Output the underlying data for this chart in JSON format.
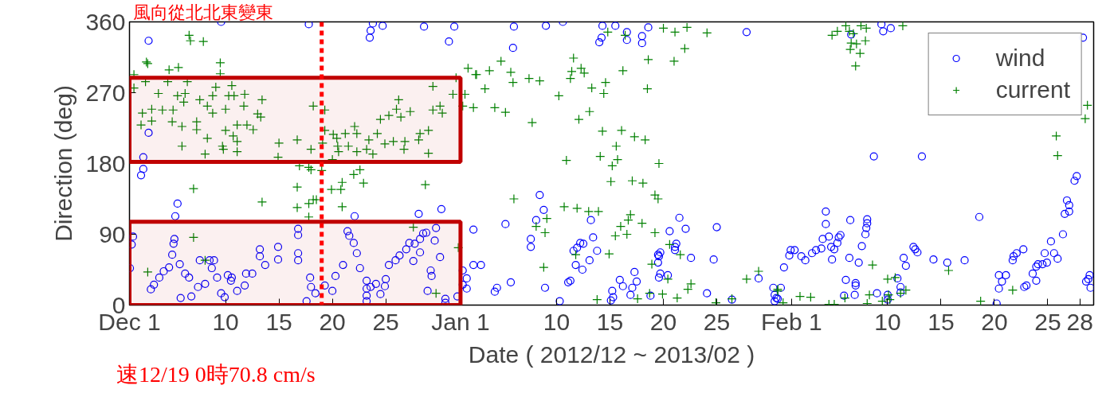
{
  "chart_data": {
    "type": "scatter",
    "xlabel": "Date ( 2012/12 ~ 2013/02 )",
    "ylabel": "Direction (deg)",
    "annotations": [
      "風向從北北東變東"
    ],
    "xlim": [
      "2012-12-01",
      "2013-03-01T07:00"
    ],
    "xticks": [
      {
        "value": "2012-12-01",
        "label": "Dec 1"
      },
      {
        "value": "2012-12-10",
        "label": "10"
      },
      {
        "value": "2012-12-15",
        "label": "15"
      },
      {
        "value": "2012-12-20",
        "label": "20"
      },
      {
        "value": "2012-12-25",
        "label": "25"
      },
      {
        "value": "2013-01-01",
        "label": "Jan 1"
      },
      {
        "value": "2013-01-10",
        "label": "10"
      },
      {
        "value": "2013-01-15",
        "label": "15"
      },
      {
        "value": "2013-01-20",
        "label": "20"
      },
      {
        "value": "2013-01-25",
        "label": "25"
      },
      {
        "value": "2013-02-01",
        "label": "Feb 1"
      },
      {
        "value": "2013-02-10",
        "label": "10"
      },
      {
        "value": "2013-02-15",
        "label": "15"
      },
      {
        "value": "2013-02-20",
        "label": "20"
      },
      {
        "value": "2013-02-25",
        "label": "25"
      },
      {
        "value": "2013-02-28",
        "label": "28"
      }
    ],
    "ylim": [
      0,
      360
    ],
    "yticks": [
      0,
      90,
      180,
      270,
      360
    ],
    "grid": false,
    "legend": "top right",
    "ref_lines": [
      {
        "axis": "x",
        "value": "2012-12-19",
        "label": "速12/19 0時70.8 cm/s",
        "color": "#ff0000",
        "line_style": "dotted"
      }
    ],
    "bands": [
      {
        "axis": "y",
        "from": 182,
        "to": 289,
        "label": null,
        "color": "#c00000"
      },
      {
        "axis": "y",
        "from": 0,
        "to": 106,
        "label": null,
        "color": "#c00000"
      }
    ],
    "series": [
      {
        "name": "wind",
        "color": "#0000ff",
        "marker": "circle",
        "x": [
          "2012-12-02T19:00",
          "2012-12-09T14:00",
          "2012-12-17T19:00",
          "2012-12-23T19:00",
          "2012-12-23T14:00",
          "2012-12-23T12:00",
          "2012-12-24T17:00",
          "2012-12-28T14:00",
          "2012-12-30T22:00",
          "2012-12-31T10:00",
          "2012-12-02T19:00",
          "2012-12-02T07:00",
          "2012-12-02T07:00",
          "2012-12-02T02:00",
          "2012-12-05T12:00",
          "2012-12-05T07:00",
          "2012-12-01T08:00",
          "2012-12-01T05:00",
          "2012-12-01T01:00",
          "2012-12-03T00:00",
          "2012-12-03T07:00",
          "2012-12-03T19:00",
          "2012-12-04T05:00",
          "2012-12-04T17:00",
          "2012-12-05T05:00",
          "2012-12-05T03:00",
          "2012-12-05T00:00",
          "2012-12-05T17:00",
          "2012-12-05T19:00",
          "2012-12-06T05:00",
          "2012-12-06T14:00",
          "2012-12-06T19:00",
          "2012-12-07T10:00",
          "2012-12-07T14:00",
          "2012-12-08T02:00",
          "2012-12-08T12:00",
          "2012-12-08T22:00",
          "2012-12-08T17:00",
          "2012-12-09T05:00",
          "2012-12-09T14:00",
          "2012-12-09T22:00",
          "2012-12-10T05:00",
          "2012-12-10T12:00",
          "2012-12-10T14:00",
          "2012-12-11T02:00",
          "2012-12-11T19:00",
          "2012-12-11T22:00",
          "2012-12-12T12:00",
          "2012-12-13T05:00",
          "2012-12-13T05:00",
          "2012-12-13T17:00",
          "2012-12-14T22:00",
          "2012-12-14T22:00",
          "2012-12-16T19:00",
          "2012-12-16T19:00",
          "2012-12-16T19:00",
          "2012-12-16T19:00",
          "2012-12-17T22:00",
          "2012-12-18T00:00",
          "2012-12-17T14:00",
          "2012-12-18T10:00",
          "2012-12-19T07:00",
          "2012-12-20T00:00",
          "2012-12-20T07:00",
          "2012-12-21T00:00",
          "2012-12-21T10:00",
          "2012-12-21T14:00",
          "2012-12-22T00:00",
          "2012-12-22T02:00",
          "2012-12-22T07:00",
          "2012-12-22T14:00",
          "2012-12-23T05:00",
          "2012-12-23T05:00",
          "2012-12-23T05:00",
          "2012-12-23T05:00",
          "2012-12-23T14:00",
          "2012-12-24T02:00",
          "2012-12-24T12:00",
          "2012-12-24T22:00",
          "2012-12-25T00:00",
          "2012-12-25T07:00",
          "2012-12-25T22:00",
          "2012-12-26T07:00",
          "2012-12-26T22:00",
          "2012-12-27T05:00",
          "2012-12-27T17:00",
          "2012-12-28T05:00",
          "2012-12-28T12:00",
          "2012-12-28T19:00",
          "2012-12-27T14:00",
          "2012-12-28T05:00",
          "2012-12-28T02:00",
          "2012-12-30T05:00",
          "2012-12-29T17:00",
          "2012-12-29T14:00",
          "2012-12-30T02:00",
          "2012-12-29T05:00",
          "2012-12-29T07:00",
          "2012-12-28T22:00",
          "2012-12-30T14:00",
          "2012-12-30T14:00",
          "2012-12-31T17:00",
          "2013-01-01T05:00",
          "2013-01-01T05:00",
          "2013-01-02T05:00",
          "2013-01-02T05:00",
          "2013-01-06T00:00",
          "2013-01-09T00:00",
          "2013-01-10T14:00",
          "2013-01-05T22:00",
          "2013-01-14T07:00",
          "2013-01-15T12:00",
          "2013-01-14T00:00",
          "2013-01-14T05:00",
          "2013-01-16T14:00",
          "2013-01-16T14:00",
          "2013-01-18T14:00",
          "2013-01-18T00:00",
          "2013-01-18T00:00",
          "2013-01-27T19:00",
          "2013-01-08T10:00",
          "2013-01-08T19:00",
          "2013-01-08T02:00",
          "2013-01-05T05:00",
          "2013-01-07T14:00",
          "2013-01-07T14:00",
          "2013-01-01T14:00",
          "2013-01-01T14:00",
          "2013-01-02T22:00",
          "2013-01-04T05:00",
          "2013-01-04T10:00",
          "2013-01-05T17:00",
          "2013-01-08T22:00",
          "2013-01-10T07:00",
          "2013-01-11T02:00",
          "2013-01-11T07:00",
          "2013-01-11T14:00",
          "2013-01-11T22:00",
          "2013-01-12T05:00",
          "2013-01-12T12:00",
          "2013-01-11T19:00",
          "2013-01-12T10:00",
          "2013-01-13T02:00",
          "2013-01-13T05:00",
          "2013-01-13T10:00",
          "2013-01-13T19:00",
          "2013-01-15T05:00",
          "2013-01-15T02:00",
          "2013-01-15T07:00",
          "2013-01-15T22:00",
          "2013-01-16T05:00",
          "2013-01-17T02:00",
          "2013-01-16T22:00",
          "2013-01-17T07:00",
          "2013-01-17T12:00",
          "2013-01-18T19:00",
          "2013-01-19T12:00",
          "2013-01-19T12:00",
          "2013-01-19T14:00",
          "2013-01-19T17:00",
          "2013-01-19T17:00",
          "2013-01-19T14:00",
          "2013-01-20T10:00",
          "2013-01-20T14:00",
          "2013-01-21T02:00",
          "2013-01-21T02:00",
          "2013-01-21T05:00",
          "2013-01-21T12:00",
          "2013-01-22T02:00",
          "2013-01-22T14:00",
          "2013-01-24T02:00",
          "2013-01-24T17:00",
          "2013-01-25T00:00",
          "2013-01-26T10:00",
          "2013-01-28T22:00",
          "2013-01-30T10:00",
          "2013-01-30T10:00",
          "2013-01-30T14:00",
          "2013-02-06T14:00",
          "2013-02-09T10:00",
          "2013-02-09T14:00",
          "2013-02-10T07:00",
          "2013-02-28T07:00",
          "2013-02-08T17:00",
          "2013-02-13T05:00",
          "2013-02-18T14:00",
          "2013-02-27T17:00",
          "2013-02-27T12:00",
          "2013-02-26T19:00",
          "2013-02-27T00:00",
          "2013-02-26T14:00",
          "2013-02-27T00:00",
          "2013-02-26T10:00",
          "2013-02-25T07:00",
          "2013-02-24T17:00",
          "2013-02-25T14:00",
          "2013-02-25T22:00",
          "2013-02-24T22:00",
          "2013-02-24T12:00",
          "2013-02-24T02:00",
          "2013-02-23T22:00",
          "2013-02-23T14:00",
          "2013-02-23T22:00",
          "2013-02-23T00:00",
          "2013-02-22T19:00",
          "2013-02-22T17:00",
          "2013-02-22T02:00",
          "2013-02-21T19:00",
          "2013-02-21T17:00",
          "2013-02-20T10:00",
          "2013-02-20T17:00",
          "2013-02-21T02:00",
          "2013-02-20T10:00",
          "2013-02-20T05:00",
          "2013-02-28T14:00",
          "2013-02-28T19:00",
          "2013-02-28T22:00",
          "2013-03-01T00:00",
          "2013-02-17T05:00",
          "2013-02-15T14:00",
          "2013-02-14T07:00",
          "2013-02-12T10:00",
          "2013-02-12T14:00",
          "2013-02-12T19:00",
          "2013-02-11T12:00",
          "2013-02-11T17:00",
          "2013-02-10T22:00",
          "2013-02-11T05:00",
          "2013-02-11T05:00",
          "2013-02-10T00:00",
          "2013-02-10T00:00",
          "2013-02-09T00:00",
          "2013-02-08T02:00",
          "2013-02-08T02:00",
          "2013-02-08T00:00",
          "2013-02-07T22:00",
          "2013-02-07T14:00",
          "2013-02-07T07:00",
          "2013-02-07T00:00",
          "2013-02-07T00:00",
          "2013-02-06T22:00",
          "2013-02-06T12:00",
          "2013-02-06T10:00",
          "2013-02-06T02:00",
          "2013-02-05T22:00",
          "2013-02-05T14:00",
          "2013-02-05T10:00",
          "2013-02-05T07:00",
          "2013-02-05T00:00",
          "2013-02-04T17:00",
          "2013-02-04T12:00",
          "2013-02-03T22:00",
          "2013-02-03T19:00",
          "2013-02-03T07:00",
          "2013-02-02T22:00",
          "2013-02-02T07:00",
          "2013-02-01T22:00",
          "2013-02-04T05:00",
          "2013-02-04T05:00",
          "2013-02-04T19:00",
          "2013-02-01T07:00",
          "2013-01-31T22:00",
          "2013-01-31T19:00",
          "2013-01-31T07:00",
          "2013-01-31T00:00",
          "2013-01-30T07:00",
          "2013-01-30T17:00"
        ],
        "values": [
          336,
          360,
          357,
          358,
          349,
          340,
          355,
          354,
          335,
          354,
          219,
          188,
          173,
          165,
          129,
          113,
          87,
          77,
          47,
          20,
          26,
          35,
          43,
          48,
          84,
          78,
          64,
          52,
          9,
          40,
          35,
          11,
          23,
          57,
          27,
          57,
          57,
          47,
          35,
          15,
          10,
          38,
          31,
          35,
          18,
          25,
          40,
          40,
          62,
          71,
          51,
          74,
          58,
          97,
          89,
          66,
          57,
          35,
          23,
          5,
          15,
          25,
          18,
          37,
          51,
          94,
          88,
          79,
          113,
          66,
          47,
          31,
          21,
          12,
          5,
          23,
          27,
          14,
          24,
          33,
          51,
          57,
          63,
          71,
          79,
          78,
          84,
          91,
          92,
          56,
          67,
          116,
          122,
          98,
          82,
          61,
          44,
          37,
          18,
          8,
          3,
          11,
          44,
          26,
          96,
          51,
          354,
          355,
          360,
          327,
          355,
          355,
          334,
          340,
          347,
          337,
          353,
          342,
          333,
          347,
          140,
          121,
          108,
          103,
          84,
          74,
          34,
          21,
          51,
          17,
          22,
          29,
          22,
          5,
          29,
          31,
          69,
          73,
          79,
          78,
          51,
          45,
          57,
          108,
          86,
          69,
          18,
          6,
          10,
          32,
          24,
          22,
          13,
          42,
          30,
          12,
          64,
          54,
          62,
          67,
          40,
          35,
          38,
          94,
          70,
          74,
          78,
          111,
          97,
          60,
          15,
          58,
          99,
          7,
          34,
          13,
          5,
          9,
          344,
          357,
          348,
          352,
          340,
          189,
          189,
          112,
          164,
          158,
          133,
          127,
          116,
          119,
          90,
          81,
          66,
          66,
          59,
          54,
          52,
          52,
          49,
          40,
          31,
          25,
          23,
          71,
          66,
          62,
          57,
          38,
          30,
          38,
          21,
          2,
          30,
          33,
          38,
          22,
          57,
          54,
          58,
          74,
          71,
          67,
          60,
          50,
          34,
          23,
          16,
          13,
          7,
          15,
          109,
          104,
          98,
          90,
          75,
          54,
          28,
          25,
          13,
          108,
          60,
          32,
          12,
          89,
          86,
          79,
          71,
          74,
          87,
          84,
          72,
          70,
          66,
          57,
          62,
          119,
          103,
          58,
          70,
          70,
          63,
          48,
          22,
          22,
          8
        ]
      },
      {
        "name": "current",
        "color": "#008000",
        "marker": "cross",
        "x": [
          "2012-12-06T14:00",
          "2012-12-06T17:00",
          "2012-12-07T22:00",
          "2012-12-02T14:00",
          "2012-12-02T17:00",
          "2012-12-04T17:00",
          "2012-12-05T14:00",
          "2012-12-09T12:00",
          "2012-12-09T12:00",
          "2012-12-01T10:00",
          "2012-12-02T12:00",
          "2012-12-04T14:00",
          "2012-12-06T10:00",
          "2012-12-01T10:00",
          "2012-12-03T17:00",
          "2012-12-05T12:00",
          "2012-12-06T05:00",
          "2012-12-07T14:00",
          "2012-12-08T19:00",
          "2012-12-10T07:00",
          "2012-12-10T19:00",
          "2012-12-11T19:00",
          "2012-12-09T02:00",
          "2012-12-10T14:00",
          "2012-12-03T02:00",
          "2012-12-04T02:00",
          "2012-12-05T02:00",
          "2012-12-06T02:00",
          "2012-12-08T07:00",
          "2012-12-08T19:00",
          "2012-12-10T00:00",
          "2012-12-11T17:00",
          "2012-12-13T10:00",
          "2012-12-02T05:00",
          "2012-12-02T02:00",
          "2012-12-03T02:00",
          "2012-12-05T00:00",
          "2012-12-05T22:00",
          "2012-12-07T07:00",
          "2012-12-07T07:00",
          "2012-12-08T07:00",
          "2012-12-10T00:00",
          "2012-12-10T17:00",
          "2012-12-11T02:00",
          "2012-12-12T00:00",
          "2012-12-12T14:00",
          "2012-12-13T00:00",
          "2012-12-13T07:00",
          "2012-12-05T22:00",
          "2012-12-08T02:00",
          "2012-12-09T17:00",
          "2012-12-09T19:00",
          "2012-12-11T02:00",
          "2012-12-11T02:00",
          "2012-12-15T00:00",
          "2012-12-14T22:00",
          "2012-12-16T17:00",
          "2012-12-18T00:00",
          "2012-12-19T02:00",
          "2012-12-18T05:00",
          "2012-12-19T07:00",
          "2012-12-16T22:00",
          "2012-12-17T19:00",
          "2012-12-18T00:00",
          "2012-12-19T00:00",
          "2012-12-19T07:00",
          "2012-12-20T02:00",
          "2012-12-20T10:00",
          "2012-12-20T12:00",
          "2012-12-20T14:00",
          "2012-12-20T00:00",
          "2012-12-21T05:00",
          "2012-12-22T02:00",
          "2012-12-22T07:00",
          "2012-12-21T12:00",
          "2012-12-22T07:00",
          "2012-12-23T05:00",
          "2012-12-23T10:00",
          "2012-12-24T05:00",
          "2012-12-24T12:00",
          "2012-12-25T07:00",
          "2012-12-26T00:00",
          "2012-12-26T05:00",
          "2012-12-24T22:00",
          "2012-12-23T19:00",
          "2012-12-25T17:00",
          "2012-12-26T10:00",
          "2012-12-27T07:00",
          "2012-12-26T19:00",
          "2012-12-26T17:00",
          "2012-12-28T05:00",
          "2012-12-28T02:00",
          "2012-12-29T00:00",
          "2012-12-29T00:00",
          "2012-12-29T10:00",
          "2012-12-29T10:00",
          "2012-12-30T02:00",
          "2012-12-30T07:00",
          "2012-12-31T07:00",
          "2013-01-01T10:00",
          "2013-01-01T05:00",
          "2013-01-02T05:00",
          "2013-01-01T17:00",
          "2013-01-02T12:00",
          "2012-12-31T14:00",
          "2012-12-16T17:00",
          "2012-12-18T05:00",
          "2012-12-18T12:00",
          "2012-12-16T17:00",
          "2012-12-17T19:00",
          "2012-12-17T19:00",
          "2012-12-13T10:00",
          "2012-12-07T00:00",
          "2012-12-20T22:00",
          "2012-12-20T19:00",
          "2012-12-19T22:00",
          "2012-12-20T22:00",
          "2012-12-22T00:00",
          "2012-12-22T14:00",
          "2012-12-22T22:00",
          "2012-12-28T17:00",
          "2012-12-27T14:00",
          "2012-12-31T19:00",
          "2012-12-29T17:00",
          "2012-12-07T00:00",
          "2012-12-02T17:00",
          "2012-12-08T02:00",
          "2013-01-02T10:00",
          "2013-01-03T17:00",
          "2013-01-04T19:00",
          "2013-01-05T17:00",
          "2013-01-05T22:00",
          "2013-01-07T10:00",
          "2013-01-08T10:00",
          "2013-01-03T07:00",
          "2013-01-04T05:00",
          "2013-01-05T05:00",
          "2013-01-07T17:00",
          "2013-01-10T05:00",
          "2013-01-11T14:00",
          "2013-01-11T10:00",
          "2013-01-11T07:00",
          "2013-01-12T07:00",
          "2013-01-12T14:00",
          "2013-01-13T07:00",
          "2013-01-13T02:00",
          "2013-01-12T02:00",
          "2013-01-14T14:00",
          "2013-01-14T10:00",
          "2013-01-16T05:00",
          "2013-01-18T14:00",
          "2013-01-18T12:00",
          "2013-01-21T00:00",
          "2013-01-22T00:00",
          "2013-01-20T00:00",
          "2013-01-21T02:00",
          "2013-01-22T05:00",
          "2013-01-24T02:00",
          "2013-01-14T19:00",
          "2013-01-16T10:00",
          "2013-01-14T07:00",
          "2013-01-16T02:00",
          "2013-01-17T07:00",
          "2013-01-18T07:00",
          "2013-01-15T14:00",
          "2013-01-14T02:00",
          "2013-01-15T17:00",
          "2013-01-15T05:00",
          "2013-01-10T22:00",
          "2013-01-19T14:00",
          "2013-01-15T02:00",
          "2013-01-17T02:00",
          "2013-01-18T02:00",
          "2013-01-19T05:00",
          "2013-01-19T12:00",
          "2013-01-06T00:00",
          "2013-01-10T17:00",
          "2013-01-11T22:00",
          "2013-01-13T00:00",
          "2013-01-13T22:00",
          "2013-01-09T02:00",
          "2013-01-08T02:00",
          "2013-01-08T22:00",
          "2013-01-08T19:00",
          "2013-01-16T22:00",
          "2013-01-16T17:00",
          "2013-01-16T00:00",
          "2013-01-18T00:00",
          "2013-01-15T12:00",
          "2013-01-16T14:00",
          "2013-01-19T05:00",
          "2013-01-20T14:00",
          "2013-01-21T14:00",
          "2013-01-14T22:00",
          "2013-01-11T19:00",
          "2013-01-18T22:00",
          "2013-01-20T10:00",
          "2013-01-22T14:00",
          "2013-01-22T07:00",
          "2013-01-28T22:00",
          "2013-01-27T19:00",
          "2013-01-30T17:00",
          "2013-01-26T10:00",
          "2013-01-24T22:00",
          "2013-01-21T07:00",
          "2013-01-19T22:00",
          "2013-01-18T17:00",
          "2013-01-17T14:00",
          "2013-01-13T19:00",
          "2013-02-04T19:00",
          "2013-02-05T07:00",
          "2013-02-06T02:00",
          "2013-02-06T10:00",
          "2013-02-06T19:00",
          "2013-02-07T12:00",
          "2013-02-08T00:00",
          "2013-02-06T14:00",
          "2013-02-07T02:00",
          "2013-02-07T22:00",
          "2013-02-06T12:00",
          "2013-02-07T10:00",
          "2013-02-07T00:00",
          "2013-02-11T10:00",
          "2013-02-28T17:00",
          "2013-02-25T19:00",
          "2013-02-25T22:00",
          "2013-02-28T12:00",
          "2013-02-08T14:00",
          "2013-02-15T17:00",
          "2013-02-10T17:00",
          "2013-02-10T00:00",
          "2013-02-11T17:00",
          "2013-02-11T05:00",
          "2013-02-21T17:00",
          "2013-01-30T17:00",
          "2013-01-31T05:00",
          "2013-02-01T19:00",
          "2013-02-02T19:00",
          "2013-02-04T12:00",
          "2013-02-05T00:00",
          "2013-02-06T00:00",
          "2013-02-08T07:00",
          "2013-02-08T02:00",
          "2013-02-09T12:00",
          "2013-02-10T05:00",
          "2013-02-10T02:00",
          "2013-02-18T17:00"
        ],
        "values": [
          343,
          336,
          335,
          309,
          307,
          299,
          302,
          308,
          294,
          293,
          284,
          284,
          284,
          276,
          269,
          266,
          269,
          261,
          266,
          266,
          266,
          268,
          277,
          279,
          249,
          248,
          248,
          258,
          253,
          244,
          249,
          253,
          261,
          244,
          229,
          234,
          233,
          227,
          233,
          223,
          212,
          222,
          215,
          229,
          229,
          223,
          243,
          239,
          202,
          192,
          202,
          198,
          195,
          208,
          206,
          188,
          210,
          198,
          206,
          253,
          248,
          177,
          175,
          172,
          171,
          222,
          217,
          212,
          202,
          195,
          185,
          218,
          227,
          218,
          202,
          195,
          198,
          210,
          218,
          236,
          241,
          249,
          261,
          205,
          192,
          208,
          239,
          246,
          208,
          198,
          218,
          210,
          222,
          193,
          278,
          248,
          253,
          244,
          268,
          268,
          253,
          251,
          301,
          293,
          289,
          150,
          134,
          134,
          124,
          129,
          112,
          131,
          148,
          156,
          147,
          147,
          125,
          166,
          172,
          155,
          153,
          99,
          73,
          15,
          86,
          42,
          57,
          293,
          298,
          310,
          296,
          283,
          288,
          285,
          275,
          251,
          245,
          232,
          266,
          314,
          297,
          288,
          301,
          295,
          276,
          246,
          236,
          283,
          269,
          298,
          312,
          275,
          310,
          326,
          352,
          347,
          353,
          346,
          347,
          343,
          221,
          222,
          214,
          210,
          202,
          189,
          185,
          177,
          184,
          180,
          157,
          158,
          155,
          140,
          135,
          135,
          125,
          123,
          119,
          119,
          110,
          100,
          92,
          48,
          115,
          108,
          100,
          104,
          88,
          90,
          92,
          77,
          64,
          65,
          64,
          52,
          33,
          27,
          20,
          43,
          33,
          18,
          8,
          3,
          9,
          14,
          15,
          8,
          7,
          343,
          348,
          355,
          348,
          345,
          355,
          352,
          333,
          332,
          336,
          325,
          320,
          304,
          355,
          254,
          215,
          190,
          237,
          51,
          44,
          35,
          33,
          19,
          15,
          19,
          20,
          3,
          11,
          10,
          1,
          1,
          9,
          13,
          2,
          5,
          7,
          13,
          5
        ]
      }
    ]
  }
}
